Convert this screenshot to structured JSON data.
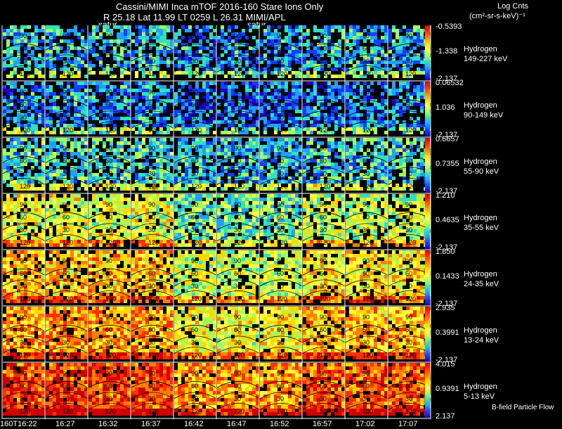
{
  "header": {
    "line1": "Cassini/MIMI Inca mTOF  2016-160    Stare    Ions Only",
    "line2": "R          25.18 Lat 11.99 LT 0259 L          26.31   MIMI/APL",
    "units_line1": "Log Cnts",
    "units_line2": "(cm²-sr-s-keV)⁻¹",
    "satur_labels": [
      "satur",
      "satur"
    ]
  },
  "panel_grid_labels": [
    "90",
    "60",
    "30",
    "120"
  ],
  "rows": [
    {
      "species": "Hydrogen",
      "energy": "149-227 keV",
      "max": "-0.5393",
      "mid": "-1.338",
      "min": "-2.137",
      "level": 0.3,
      "noise": 0.55
    },
    {
      "species": "Hydrogen",
      "energy": "90-149 keV",
      "max": "0.06532",
      "mid": "1.036",
      "min": "-2.137",
      "level": 0.25,
      "noise": 0.45
    },
    {
      "species": "Hydrogen",
      "energy": "55-90 keV",
      "max": "0.6657",
      "mid": "0.7355",
      "min": "-2.137",
      "level": 0.35,
      "noise": 0.4
    },
    {
      "species": "Hydrogen",
      "energy": "35-55 keV",
      "max": "1.210",
      "mid": "0.4635",
      "min": "-2.137",
      "level": 0.55,
      "noise": 0.3
    },
    {
      "species": "Hydrogen",
      "energy": "24-35 keV",
      "max": "1.850",
      "mid": "0.1433",
      "min": "-2.137",
      "level": 0.66,
      "noise": 0.25
    },
    {
      "species": "Hydrogen",
      "energy": "13-24 keV",
      "max": "2.935",
      "mid": "0.3991",
      "min": "-2.137",
      "level": 0.72,
      "noise": 0.18
    },
    {
      "species": "Hydrogen",
      "energy": "5-13 keV",
      "max": "4.015",
      "mid": "0.9391",
      "min": "2.137",
      "level": 0.86,
      "noise": 0.12
    }
  ],
  "time_labels": [
    "160T16:22",
    "16:27",
    "16:32",
    "16:37",
    "16:42",
    "16:47",
    "16:52",
    "16:57",
    "17:02",
    "17:07"
  ],
  "footer_note": "B-field Particle Flow",
  "colorbar_colors": [
    "#d00000",
    "#ff3000",
    "#ff8000",
    "#ffd800",
    "#ffff40",
    "#a0ff60",
    "#30e0c0",
    "#20a0ff",
    "#1040ff",
    "#2000c0"
  ]
}
